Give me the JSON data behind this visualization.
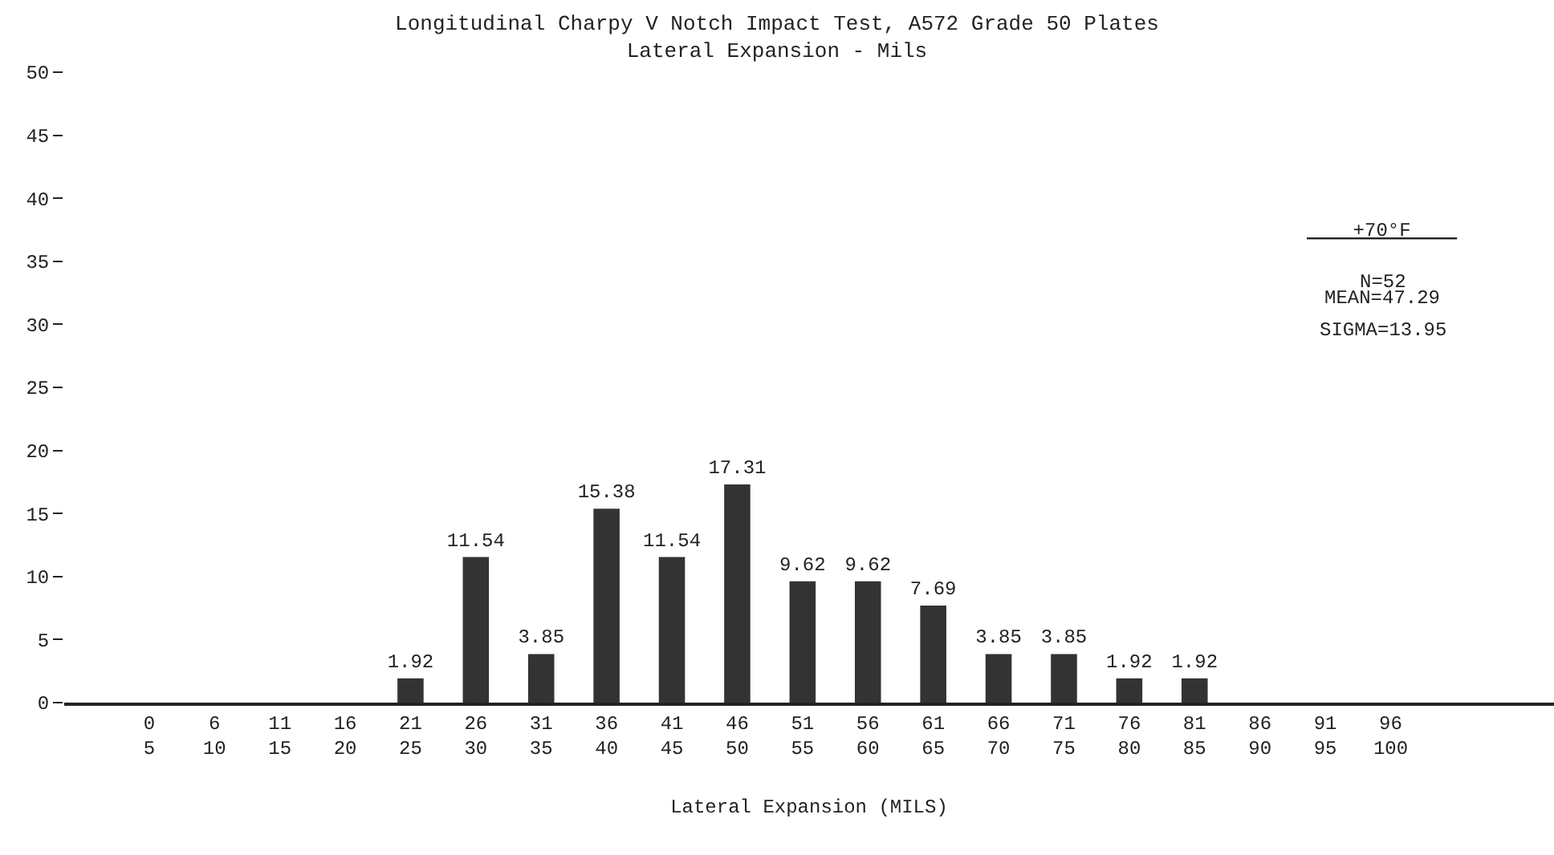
{
  "chart_data": {
    "type": "bar",
    "title": "Longitudinal Charpy V Notch Impact Test, A572 Grade 50 Plates",
    "subtitle": "Lateral Expansion - Mils",
    "xlabel": "Lateral Expansion (MILS)",
    "categories": [
      "0\n5",
      "6\n10",
      "11\n15",
      "16\n20",
      "21\n25",
      "26\n30",
      "31\n35",
      "36\n40",
      "41\n45",
      "46\n50",
      "51\n55",
      "56\n60",
      "61\n65",
      "66\n70",
      "71\n75",
      "76\n80",
      "81\n85",
      "86\n90",
      "91\n95",
      "96\n100"
    ],
    "values": [
      0,
      0,
      0,
      0,
      1.92,
      11.54,
      3.85,
      15.38,
      11.54,
      17.31,
      9.62,
      9.62,
      7.69,
      3.85,
      3.85,
      1.92,
      1.92,
      0,
      0,
      0
    ],
    "value_labels": [
      null,
      null,
      null,
      null,
      "1.92",
      "11.54",
      "3.85",
      "15.38",
      "11.54",
      "17.31",
      "9.62",
      "9.62",
      "7.69",
      "3.85",
      "3.85",
      "1.92",
      "1.92",
      null,
      null,
      null
    ],
    "color": "#333333",
    "ylim": [
      0,
      50
    ],
    "yticks": [
      0,
      5,
      10,
      15,
      20,
      25,
      30,
      35,
      40,
      45,
      50
    ],
    "annotations": [
      "+70°F",
      "N=52",
      "MEAN=47.29",
      "SIGMA=13.95"
    ]
  }
}
